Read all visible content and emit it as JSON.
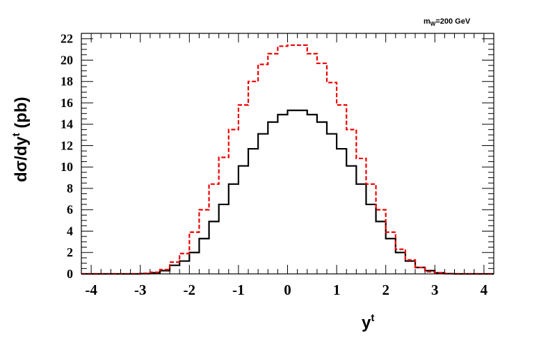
{
  "chart_data": {
    "type": "line",
    "style": "step-histogram",
    "annotation": {
      "main": "m",
      "sub": "W",
      "rest": "=200 GeV"
    },
    "xlabel": {
      "main": "y",
      "sup": "t"
    },
    "ylabel": {
      "pre": "dσ/dy",
      "sup": "t",
      "post": " (pb)"
    },
    "xlim": [
      -4.2,
      4.2
    ],
    "ylim": [
      0,
      22.5
    ],
    "x_ticks": [
      -4,
      -3,
      -2,
      -1,
      0,
      1,
      2,
      3,
      4
    ],
    "y_ticks": [
      0,
      2,
      4,
      6,
      8,
      10,
      12,
      14,
      16,
      18,
      20,
      22
    ],
    "bin_edges": [
      -4.2,
      -4.0,
      -3.8,
      -3.6,
      -3.4,
      -3.2,
      -3.0,
      -2.8,
      -2.6,
      -2.4,
      -2.2,
      -2.0,
      -1.8,
      -1.6,
      -1.4,
      -1.2,
      -1.0,
      -0.8,
      -0.6,
      -0.4,
      -0.2,
      0.0,
      0.2,
      0.4,
      0.6,
      0.8,
      1.0,
      1.2,
      1.4,
      1.6,
      1.8,
      2.0,
      2.2,
      2.4,
      2.6,
      2.8,
      3.0,
      3.2,
      3.4,
      3.6,
      3.8,
      4.0,
      4.2
    ],
    "series": [
      {
        "color": "#000000",
        "dash": "solid",
        "values": [
          0,
          0,
          0,
          0,
          0,
          0,
          0.02,
          0.1,
          0.3,
          0.8,
          1.2,
          2.0,
          3.3,
          4.9,
          6.5,
          8.4,
          10.1,
          11.7,
          13.1,
          14.2,
          14.9,
          15.3,
          15.3,
          14.9,
          14.2,
          13.1,
          11.7,
          10.1,
          8.4,
          6.5,
          4.9,
          3.3,
          2.0,
          1.2,
          0.6,
          0.3,
          0.1,
          0.02,
          0,
          0,
          0,
          0
        ]
      },
      {
        "color": "#ee0000",
        "dash": "dashed",
        "values": [
          0,
          0,
          0,
          0,
          0,
          0,
          0.05,
          0.15,
          0.4,
          1.1,
          1.9,
          3.9,
          6.0,
          8.4,
          10.9,
          13.5,
          15.8,
          18.0,
          19.6,
          20.6,
          21.3,
          21.4,
          21.4,
          20.6,
          19.7,
          17.9,
          15.8,
          13.5,
          10.8,
          8.4,
          6.0,
          3.9,
          2.3,
          1.3,
          0.6,
          0.2,
          0.1,
          0.02,
          0,
          0,
          0,
          0
        ]
      }
    ]
  }
}
